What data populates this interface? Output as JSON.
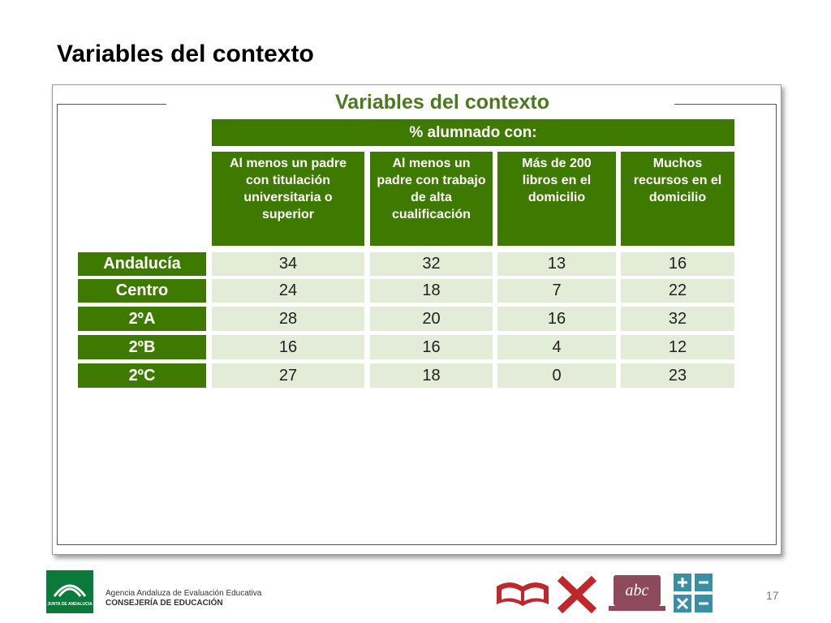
{
  "slide_title": "Variables del contexto",
  "table": {
    "title": "Variables del contexto",
    "group_header": "% alumnado con:",
    "columns": [
      "Al menos un padre con titulación universitaria o superior",
      "Al menos un padre con trabajo de alta cualificación",
      "Más de 200 libros en el domicilio",
      "Muchos recursos en el domicilio"
    ],
    "rows": [
      {
        "label": "Andalucía",
        "values": [
          34,
          32,
          13,
          16
        ]
      },
      {
        "label": "Centro",
        "values": [
          24,
          18,
          7,
          22
        ]
      },
      {
        "label": "2ºA",
        "values": [
          28,
          20,
          16,
          32
        ]
      },
      {
        "label": "2ºB",
        "values": [
          16,
          16,
          4,
          12
        ]
      },
      {
        "label": "2ºC",
        "values": [
          27,
          18,
          0,
          23
        ]
      }
    ]
  },
  "footer": {
    "logo_text": "JUNTA DE ANDALUCIA",
    "agency": "Agencia Andaluza de Evaluación Educativa",
    "ministry": "CONSEJERÍA DE EDUCACIÓN",
    "icon_text": "abc",
    "page_number": "17"
  }
}
